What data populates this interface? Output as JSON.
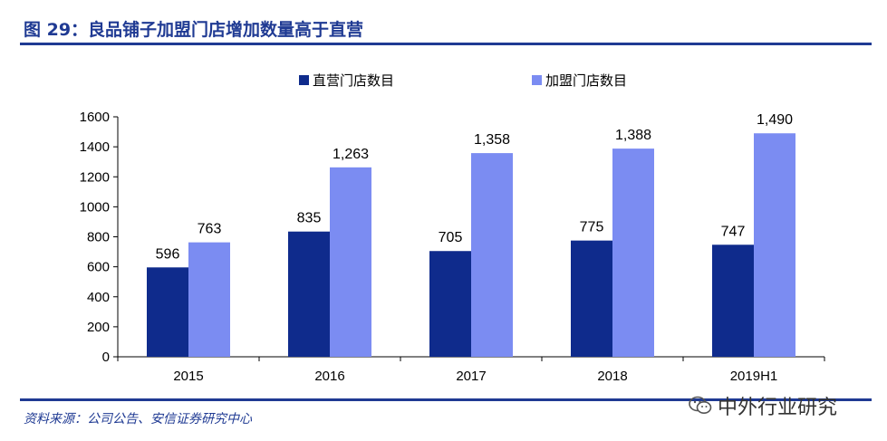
{
  "header": {
    "title": "图 29：良品铺子加盟门店增加数量高于直营"
  },
  "footer": {
    "source": "资料来源：公司公告、安信证券研究中心"
  },
  "watermark": {
    "text": "中外行业研究",
    "icon": "wechat-icon"
  },
  "colors": {
    "title": "#1f3a93",
    "series1": "#0f2b8c",
    "series2": "#7b8cf2"
  },
  "chart_data": {
    "type": "bar",
    "categories": [
      "2015",
      "2016",
      "2017",
      "2018",
      "2019H1"
    ],
    "series": [
      {
        "name": "直营门店数目",
        "values": [
          596,
          835,
          705,
          775,
          747
        ],
        "labels": [
          "596",
          "835",
          "705",
          "775",
          "747"
        ]
      },
      {
        "name": "加盟门店数目",
        "values": [
          763,
          1263,
          1358,
          1388,
          1490
        ],
        "labels": [
          "763",
          "1,263",
          "1,358",
          "1,388",
          "1,490"
        ]
      }
    ],
    "ylim": [
      0,
      1600
    ],
    "yticks": [
      "0",
      "200",
      "400",
      "600",
      "800",
      "1000",
      "1200",
      "1400",
      "1600"
    ],
    "legend": "top-center",
    "grid": false
  }
}
